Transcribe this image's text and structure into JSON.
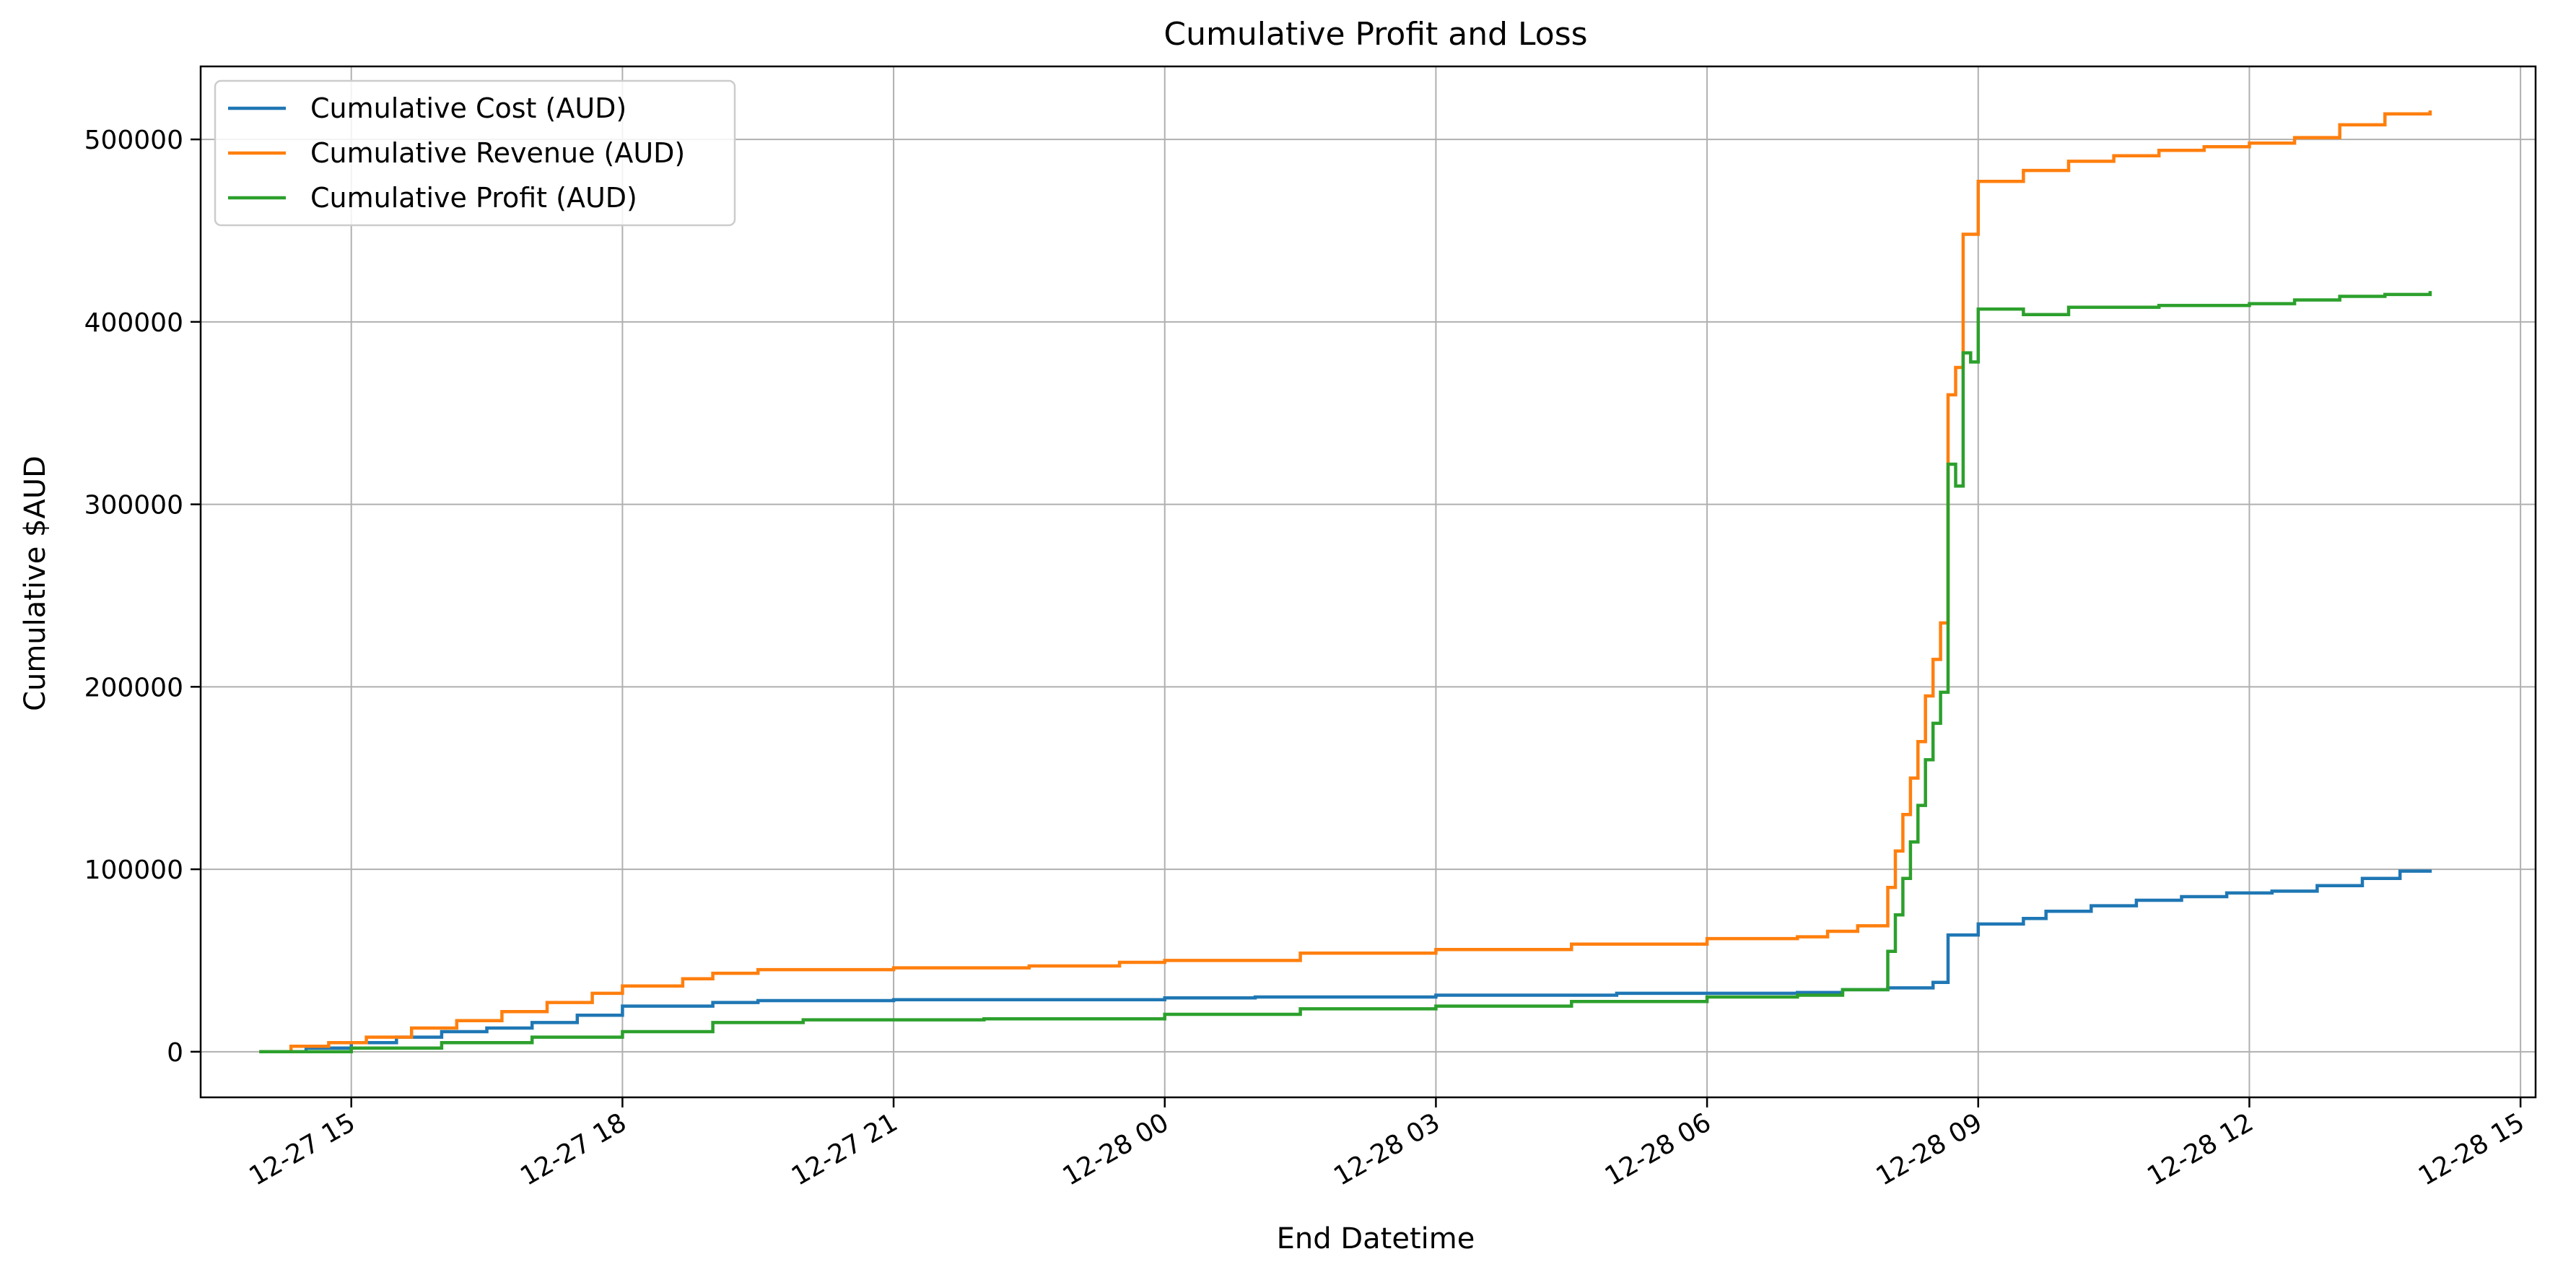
{
  "chart_data": {
    "type": "line",
    "title": "Cumulative Profit and Loss",
    "xlabel": "End Datetime",
    "ylabel": "Cumulative $AUD",
    "x_unit": "datetime",
    "xlim": [
      "2024-12-27 13:20",
      "2024-12-28 15:10"
    ],
    "ylim": [
      -25000,
      540000
    ],
    "x_ticks": [
      {
        "t": "2024-12-27 15:00",
        "label": "12-27 15"
      },
      {
        "t": "2024-12-27 18:00",
        "label": "12-27 18"
      },
      {
        "t": "2024-12-27 21:00",
        "label": "12-27 21"
      },
      {
        "t": "2024-12-28 00:00",
        "label": "12-28 00"
      },
      {
        "t": "2024-12-28 03:00",
        "label": "12-28 03"
      },
      {
        "t": "2024-12-28 06:00",
        "label": "12-28 06"
      },
      {
        "t": "2024-12-28 09:00",
        "label": "12-28 09"
      },
      {
        "t": "2024-12-28 12:00",
        "label": "12-28 12"
      },
      {
        "t": "2024-12-28 15:00",
        "label": "12-28 15"
      }
    ],
    "y_ticks": [
      0,
      100000,
      200000,
      300000,
      400000,
      500000
    ],
    "grid": true,
    "legend_position": "top-left",
    "step": true,
    "series": [
      {
        "name": "Cumulative Cost (AUD)",
        "color": "#1f77b4",
        "points": [
          [
            "2024-12-27 14:00",
            0
          ],
          [
            "2024-12-27 14:30",
            2000
          ],
          [
            "2024-12-27 15:00",
            5000
          ],
          [
            "2024-12-27 15:30",
            8000
          ],
          [
            "2024-12-27 16:00",
            11000
          ],
          [
            "2024-12-27 16:30",
            13000
          ],
          [
            "2024-12-27 17:00",
            16000
          ],
          [
            "2024-12-27 17:30",
            20000
          ],
          [
            "2024-12-27 18:00",
            25000
          ],
          [
            "2024-12-27 19:00",
            27000
          ],
          [
            "2024-12-27 19:30",
            28000
          ],
          [
            "2024-12-27 21:00",
            28500
          ],
          [
            "2024-12-27 23:00",
            28500
          ],
          [
            "2024-12-28 00:00",
            29500
          ],
          [
            "2024-12-28 01:00",
            30000
          ],
          [
            "2024-12-28 03:00",
            31000
          ],
          [
            "2024-12-28 05:00",
            32000
          ],
          [
            "2024-12-28 07:00",
            32500
          ],
          [
            "2024-12-28 07:30",
            34000
          ],
          [
            "2024-12-28 08:00",
            35000
          ],
          [
            "2024-12-28 08:30",
            38000
          ],
          [
            "2024-12-28 08:40",
            64000
          ],
          [
            "2024-12-28 09:00",
            70000
          ],
          [
            "2024-12-28 09:30",
            73000
          ],
          [
            "2024-12-28 09:45",
            77000
          ],
          [
            "2024-12-28 10:15",
            80000
          ],
          [
            "2024-12-28 10:45",
            83000
          ],
          [
            "2024-12-28 11:15",
            85000
          ],
          [
            "2024-12-28 11:45",
            87000
          ],
          [
            "2024-12-28 12:15",
            88000
          ],
          [
            "2024-12-28 12:45",
            91000
          ],
          [
            "2024-12-28 13:15",
            95000
          ],
          [
            "2024-12-28 13:40",
            99000
          ],
          [
            "2024-12-28 14:00",
            99000
          ]
        ]
      },
      {
        "name": "Cumulative Revenue (AUD)",
        "color": "#ff7f0e",
        "points": [
          [
            "2024-12-27 14:00",
            0
          ],
          [
            "2024-12-27 14:20",
            3000
          ],
          [
            "2024-12-27 14:45",
            5000
          ],
          [
            "2024-12-27 15:10",
            8000
          ],
          [
            "2024-12-27 15:40",
            13000
          ],
          [
            "2024-12-27 16:10",
            17000
          ],
          [
            "2024-12-27 16:40",
            22000
          ],
          [
            "2024-12-27 17:10",
            27000
          ],
          [
            "2024-12-27 17:40",
            32000
          ],
          [
            "2024-12-27 18:00",
            36000
          ],
          [
            "2024-12-27 18:40",
            40000
          ],
          [
            "2024-12-27 19:00",
            43000
          ],
          [
            "2024-12-27 19:30",
            45000
          ],
          [
            "2024-12-27 21:00",
            46000
          ],
          [
            "2024-12-27 22:30",
            47000
          ],
          [
            "2024-12-27 23:30",
            49000
          ],
          [
            "2024-12-28 00:00",
            50000
          ],
          [
            "2024-12-28 01:30",
            54000
          ],
          [
            "2024-12-28 03:00",
            56000
          ],
          [
            "2024-12-28 04:30",
            59000
          ],
          [
            "2024-12-28 06:00",
            62000
          ],
          [
            "2024-12-28 07:00",
            63000
          ],
          [
            "2024-12-28 07:20",
            66000
          ],
          [
            "2024-12-28 07:40",
            69000
          ],
          [
            "2024-12-28 08:00",
            90000
          ],
          [
            "2024-12-28 08:05",
            110000
          ],
          [
            "2024-12-28 08:10",
            130000
          ],
          [
            "2024-12-28 08:15",
            150000
          ],
          [
            "2024-12-28 08:20",
            170000
          ],
          [
            "2024-12-28 08:25",
            195000
          ],
          [
            "2024-12-28 08:30",
            215000
          ],
          [
            "2024-12-28 08:35",
            235000
          ],
          [
            "2024-12-28 08:40",
            360000
          ],
          [
            "2024-12-28 08:45",
            375000
          ],
          [
            "2024-12-28 08:50",
            448000
          ],
          [
            "2024-12-28 09:00",
            477000
          ],
          [
            "2024-12-28 09:30",
            483000
          ],
          [
            "2024-12-28 10:00",
            488000
          ],
          [
            "2024-12-28 10:30",
            491000
          ],
          [
            "2024-12-28 11:00",
            494000
          ],
          [
            "2024-12-28 11:30",
            496000
          ],
          [
            "2024-12-28 12:00",
            498000
          ],
          [
            "2024-12-28 12:30",
            501000
          ],
          [
            "2024-12-28 13:00",
            508000
          ],
          [
            "2024-12-28 13:30",
            514000
          ],
          [
            "2024-12-28 14:00",
            515000
          ]
        ]
      },
      {
        "name": "Cumulative Profit (AUD)",
        "color": "#2ca02c",
        "points": [
          [
            "2024-12-27 14:00",
            0
          ],
          [
            "2024-12-27 15:00",
            2000
          ],
          [
            "2024-12-27 16:00",
            5000
          ],
          [
            "2024-12-27 17:00",
            8000
          ],
          [
            "2024-12-27 18:00",
            11000
          ],
          [
            "2024-12-27 19:00",
            16000
          ],
          [
            "2024-12-27 20:00",
            17500
          ],
          [
            "2024-12-27 22:00",
            18000
          ],
          [
            "2024-12-28 00:00",
            20500
          ],
          [
            "2024-12-28 01:30",
            23500
          ],
          [
            "2024-12-28 03:00",
            25000
          ],
          [
            "2024-12-28 04:30",
            27500
          ],
          [
            "2024-12-28 06:00",
            30000
          ],
          [
            "2024-12-28 07:00",
            31000
          ],
          [
            "2024-12-28 07:30",
            34000
          ],
          [
            "2024-12-28 08:00",
            55000
          ],
          [
            "2024-12-28 08:05",
            75000
          ],
          [
            "2024-12-28 08:10",
            95000
          ],
          [
            "2024-12-28 08:15",
            115000
          ],
          [
            "2024-12-28 08:20",
            135000
          ],
          [
            "2024-12-28 08:25",
            160000
          ],
          [
            "2024-12-28 08:30",
            180000
          ],
          [
            "2024-12-28 08:35",
            197000
          ],
          [
            "2024-12-28 08:40",
            322000
          ],
          [
            "2024-12-28 08:45",
            310000
          ],
          [
            "2024-12-28 08:50",
            383000
          ],
          [
            "2024-12-28 08:55",
            378000
          ],
          [
            "2024-12-28 09:00",
            407000
          ],
          [
            "2024-12-28 09:30",
            404000
          ],
          [
            "2024-12-28 10:00",
            408000
          ],
          [
            "2024-12-28 11:00",
            409000
          ],
          [
            "2024-12-28 12:00",
            410000
          ],
          [
            "2024-12-28 12:30",
            412000
          ],
          [
            "2024-12-28 13:00",
            414000
          ],
          [
            "2024-12-28 13:30",
            415000
          ],
          [
            "2024-12-28 14:00",
            416000
          ]
        ]
      }
    ]
  }
}
